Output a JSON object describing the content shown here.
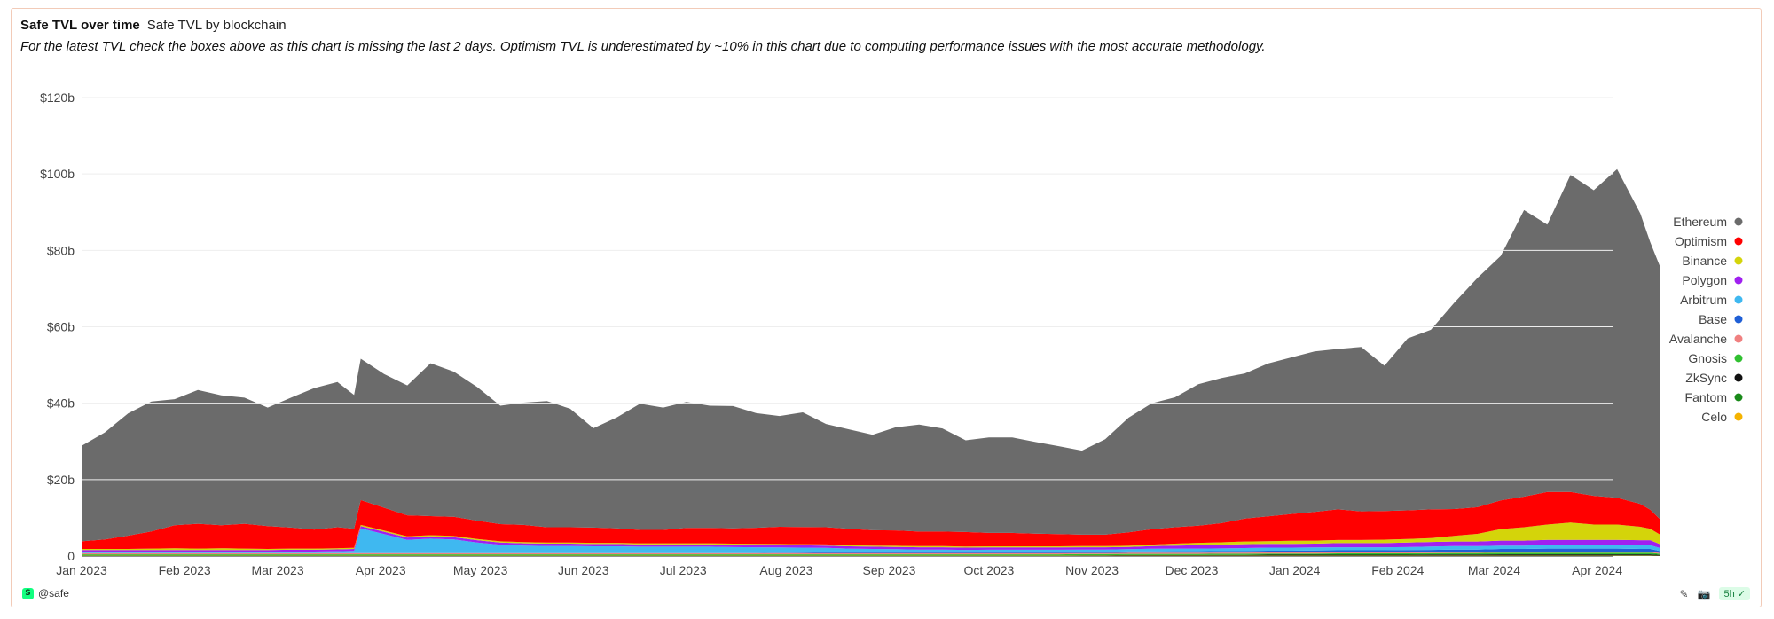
{
  "header": {
    "title": "Safe TVL over time",
    "subtitle": "Safe TVL by blockchain",
    "note": "For the latest TVL check the boxes above as this chart is missing the last 2 days. Optimism TVL is underestimated by ~10% in this chart due to computing performance issues with the most accurate methodology."
  },
  "footer": {
    "author": "@safe",
    "logo_glyph": "S",
    "age_badge": "5h",
    "badge_check": "✓",
    "icon_edit": "✎",
    "icon_camera": "📷"
  },
  "chart_data": {
    "type": "area",
    "stacked": true,
    "x_unit": "date",
    "x_tick_labels": [
      "Jan 2023",
      "Feb 2023",
      "Mar 2023",
      "Apr 2023",
      "May 2023",
      "Jun 2023",
      "Jul 2023",
      "Aug 2023",
      "Sep 2023",
      "Oct 2023",
      "Nov 2023",
      "Dec 2023",
      "Jan 2024",
      "Feb 2024",
      "Mar 2024",
      "Apr 2024"
    ],
    "y_tick_labels": [
      "0",
      "$20b",
      "$40b",
      "$60b",
      "$80b",
      "$100b",
      "$120b"
    ],
    "ylim": [
      0,
      120
    ],
    "y_unit": "billions USD",
    "grid": true,
    "legend_position": "right",
    "x": [
      "2023-01-01",
      "2023-01-08",
      "2023-01-15",
      "2023-01-22",
      "2023-01-29",
      "2023-02-05",
      "2023-02-12",
      "2023-02-19",
      "2023-02-26",
      "2023-03-05",
      "2023-03-12",
      "2023-03-19",
      "2023-03-24",
      "2023-03-26",
      "2023-04-02",
      "2023-04-09",
      "2023-04-16",
      "2023-04-23",
      "2023-04-30",
      "2023-05-07",
      "2023-05-14",
      "2023-05-21",
      "2023-05-28",
      "2023-06-04",
      "2023-06-11",
      "2023-06-18",
      "2023-06-25",
      "2023-07-02",
      "2023-07-09",
      "2023-07-16",
      "2023-07-23",
      "2023-07-30",
      "2023-08-06",
      "2023-08-13",
      "2023-08-20",
      "2023-08-27",
      "2023-09-03",
      "2023-09-10",
      "2023-09-17",
      "2023-09-24",
      "2023-10-01",
      "2023-10-08",
      "2023-10-15",
      "2023-10-22",
      "2023-10-29",
      "2023-11-05",
      "2023-11-12",
      "2023-11-19",
      "2023-11-26",
      "2023-12-03",
      "2023-12-10",
      "2023-12-17",
      "2023-12-24",
      "2023-12-31",
      "2024-01-07",
      "2024-01-14",
      "2024-01-21",
      "2024-01-28",
      "2024-02-04",
      "2024-02-11",
      "2024-02-18",
      "2024-02-25",
      "2024-03-03",
      "2024-03-10",
      "2024-03-17",
      "2024-03-24",
      "2024-03-31",
      "2024-04-07",
      "2024-04-14",
      "2024-04-17",
      "2024-04-20"
    ],
    "series": [
      {
        "name": "Celo",
        "color": "#f5b300",
        "values": [
          0.1,
          0.1,
          0.1,
          0.1,
          0.1,
          0.1,
          0.1,
          0.1,
          0.1,
          0.1,
          0.1,
          0.1,
          0.1,
          0.1,
          0.1,
          0.1,
          0.1,
          0.1,
          0.1,
          0.1,
          0.1,
          0.1,
          0.1,
          0.1,
          0.1,
          0.1,
          0.1,
          0.1,
          0.1,
          0.1,
          0.1,
          0.1,
          0.1,
          0.1,
          0.1,
          0.1,
          0.1,
          0.1,
          0.1,
          0.1,
          0.1,
          0.1,
          0.1,
          0.1,
          0.1,
          0.1,
          0.1,
          0.1,
          0.1,
          0.1,
          0.1,
          0.1,
          0.1,
          0.1,
          0.1,
          0.1,
          0.1,
          0.1,
          0.1,
          0.1,
          0.1,
          0.1,
          0.1,
          0.1,
          0.1,
          0.1,
          0.1,
          0.1,
          0.1,
          0.1,
          0.05
        ]
      },
      {
        "name": "Fantom",
        "color": "#1a8a1a",
        "values": [
          0.05,
          0.05,
          0.05,
          0.05,
          0.05,
          0.05,
          0.05,
          0.05,
          0.05,
          0.05,
          0.05,
          0.05,
          0.05,
          0.05,
          0.05,
          0.05,
          0.05,
          0.05,
          0.05,
          0.05,
          0.05,
          0.05,
          0.05,
          0.05,
          0.05,
          0.05,
          0.05,
          0.05,
          0.05,
          0.05,
          0.05,
          0.05,
          0.05,
          0.05,
          0.05,
          0.05,
          0.05,
          0.05,
          0.05,
          0.05,
          0.05,
          0.05,
          0.05,
          0.05,
          0.05,
          0.05,
          0.05,
          0.05,
          0.05,
          0.05,
          0.05,
          0.05,
          0.05,
          0.05,
          0.05,
          0.05,
          0.05,
          0.05,
          0.05,
          0.05,
          0.05,
          0.05,
          0.05,
          0.05,
          0.05,
          0.05,
          0.05,
          0.05,
          0.05,
          0.05,
          0.03
        ]
      },
      {
        "name": "ZkSync",
        "color": "#111111",
        "values": [
          0,
          0,
          0,
          0,
          0,
          0,
          0,
          0,
          0,
          0,
          0,
          0,
          0,
          0,
          0,
          0,
          0,
          0,
          0,
          0,
          0,
          0,
          0,
          0,
          0,
          0,
          0,
          0,
          0,
          0,
          0,
          0,
          0,
          0,
          0,
          0,
          0,
          0,
          0,
          0,
          0,
          0,
          0,
          0,
          0.05,
          0.05,
          0.1,
          0.1,
          0.1,
          0.1,
          0.15,
          0.15,
          0.2,
          0.2,
          0.2,
          0.2,
          0.2,
          0.2,
          0.2,
          0.25,
          0.25,
          0.25,
          0.3,
          0.3,
          0.3,
          0.3,
          0.3,
          0.3,
          0.3,
          0.3,
          0.2
        ]
      },
      {
        "name": "Gnosis",
        "color": "#30c030",
        "values": [
          0.3,
          0.3,
          0.3,
          0.3,
          0.3,
          0.3,
          0.3,
          0.3,
          0.3,
          0.3,
          0.3,
          0.3,
          0.3,
          0.3,
          0.3,
          0.3,
          0.3,
          0.3,
          0.3,
          0.3,
          0.3,
          0.3,
          0.3,
          0.3,
          0.3,
          0.3,
          0.3,
          0.3,
          0.3,
          0.3,
          0.3,
          0.3,
          0.3,
          0.3,
          0.3,
          0.3,
          0.3,
          0.3,
          0.3,
          0.3,
          0.3,
          0.3,
          0.3,
          0.3,
          0.3,
          0.3,
          0.3,
          0.3,
          0.3,
          0.3,
          0.3,
          0.3,
          0.3,
          0.3,
          0.3,
          0.35,
          0.35,
          0.35,
          0.35,
          0.35,
          0.4,
          0.4,
          0.4,
          0.4,
          0.4,
          0.4,
          0.4,
          0.4,
          0.4,
          0.4,
          0.3
        ]
      },
      {
        "name": "Avalanche",
        "color": "#f08080",
        "values": [
          0.3,
          0.3,
          0.3,
          0.3,
          0.3,
          0.3,
          0.3,
          0.3,
          0.3,
          0.3,
          0.3,
          0.3,
          0.3,
          0.3,
          0.3,
          0.3,
          0.3,
          0.3,
          0.3,
          0.3,
          0.3,
          0.3,
          0.3,
          0.3,
          0.3,
          0.3,
          0.3,
          0.3,
          0.3,
          0.3,
          0.3,
          0.3,
          0.3,
          0.3,
          0.3,
          0.3,
          0.3,
          0.3,
          0.3,
          0.3,
          0.3,
          0.3,
          0.3,
          0.3,
          0.3,
          0.3,
          0.3,
          0.3,
          0.3,
          0.3,
          0.3,
          0.3,
          0.3,
          0.3,
          0.3,
          0.3,
          0.3,
          0.3,
          0.3,
          0.3,
          0.3,
          0.3,
          0.3,
          0.3,
          0.3,
          0.3,
          0.3,
          0.3,
          0.3,
          0.3,
          0.2
        ]
      },
      {
        "name": "Base",
        "color": "#1f5fd6",
        "values": [
          0,
          0,
          0,
          0,
          0,
          0,
          0,
          0,
          0,
          0,
          0,
          0,
          0,
          0,
          0,
          0,
          0,
          0,
          0,
          0,
          0,
          0,
          0,
          0,
          0,
          0,
          0,
          0,
          0,
          0,
          0.05,
          0.1,
          0.15,
          0.2,
          0.2,
          0.2,
          0.25,
          0.25,
          0.25,
          0.25,
          0.3,
          0.3,
          0.3,
          0.3,
          0.3,
          0.3,
          0.35,
          0.35,
          0.4,
          0.4,
          0.4,
          0.4,
          0.45,
          0.45,
          0.5,
          0.5,
          0.5,
          0.5,
          0.55,
          0.55,
          0.6,
          0.6,
          0.7,
          0.7,
          0.8,
          0.8,
          0.8,
          0.8,
          0.7,
          0.7,
          0.5
        ]
      },
      {
        "name": "Arbitrum",
        "color": "#3fb8f0",
        "values": [
          0.3,
          0.3,
          0.3,
          0.3,
          0.3,
          0.3,
          0.3,
          0.3,
          0.3,
          0.4,
          0.4,
          0.5,
          0.6,
          6.5,
          5.0,
          3.5,
          3.8,
          3.6,
          2.8,
          2.2,
          2.0,
          1.9,
          1.9,
          1.8,
          1.8,
          1.7,
          1.7,
          1.7,
          1.7,
          1.6,
          1.5,
          1.4,
          1.3,
          1.2,
          1.0,
          0.9,
          0.8,
          0.7,
          0.7,
          0.6,
          0.6,
          0.6,
          0.6,
          0.6,
          0.6,
          0.6,
          0.6,
          0.7,
          0.7,
          0.7,
          0.7,
          0.8,
          0.8,
          0.8,
          0.8,
          0.8,
          0.8,
          0.8,
          0.8,
          0.9,
          0.9,
          0.9,
          0.9,
          0.9,
          1.0,
          1.0,
          1.0,
          1.0,
          1.0,
          1.0,
          0.8
        ]
      },
      {
        "name": "Polygon",
        "color": "#a020f0",
        "values": [
          0.5,
          0.5,
          0.5,
          0.5,
          0.5,
          0.5,
          0.5,
          0.5,
          0.5,
          0.5,
          0.5,
          0.5,
          0.5,
          0.6,
          0.6,
          0.6,
          0.6,
          0.6,
          0.6,
          0.6,
          0.6,
          0.6,
          0.6,
          0.6,
          0.6,
          0.6,
          0.6,
          0.6,
          0.6,
          0.6,
          0.6,
          0.6,
          0.6,
          0.6,
          0.6,
          0.6,
          0.6,
          0.6,
          0.6,
          0.6,
          0.6,
          0.6,
          0.6,
          0.6,
          0.6,
          0.6,
          0.6,
          0.7,
          0.8,
          0.9,
          1.0,
          1.0,
          1.0,
          1.0,
          1.0,
          1.1,
          1.1,
          1.1,
          1.2,
          1.2,
          1.2,
          1.2,
          1.3,
          1.3,
          1.3,
          1.3,
          1.3,
          1.3,
          1.3,
          1.3,
          1.0
        ]
      },
      {
        "name": "Binance",
        "color": "#d4d40a",
        "values": [
          0.3,
          0.3,
          0.3,
          0.4,
          0.5,
          0.4,
          0.5,
          0.4,
          0.3,
          0.3,
          0.3,
          0.3,
          0.3,
          0.3,
          0.3,
          0.3,
          0.3,
          0.3,
          0.3,
          0.3,
          0.3,
          0.3,
          0.3,
          0.3,
          0.3,
          0.3,
          0.3,
          0.3,
          0.3,
          0.3,
          0.3,
          0.3,
          0.3,
          0.3,
          0.3,
          0.3,
          0.3,
          0.3,
          0.3,
          0.3,
          0.3,
          0.3,
          0.3,
          0.3,
          0.3,
          0.3,
          0.3,
          0.4,
          0.5,
          0.6,
          0.6,
          0.7,
          0.7,
          0.8,
          0.8,
          0.8,
          0.8,
          0.9,
          0.9,
          1.0,
          1.5,
          2.0,
          3.0,
          3.5,
          4.0,
          4.5,
          4.0,
          4.0,
          3.5,
          3.0,
          2.5
        ]
      },
      {
        "name": "Optimism",
        "color": "#ff0000",
        "values": [
          2.0,
          2.5,
          3.5,
          4.5,
          6.0,
          6.5,
          6.0,
          6.5,
          6.0,
          5.5,
          5.0,
          5.5,
          5.0,
          6.5,
          6.0,
          5.5,
          5.0,
          5.0,
          4.8,
          4.5,
          4.5,
          4.0,
          4.0,
          4.0,
          3.8,
          3.5,
          3.5,
          4.0,
          4.0,
          4.0,
          4.2,
          4.5,
          4.5,
          4.5,
          4.3,
          4.0,
          4.0,
          3.8,
          3.8,
          3.8,
          3.5,
          3.5,
          3.3,
          3.2,
          3.0,
          3.0,
          3.5,
          4.0,
          4.3,
          4.5,
          5.0,
          6.0,
          6.5,
          7.0,
          7.5,
          8.0,
          7.5,
          7.5,
          7.5,
          7.5,
          7.0,
          7.0,
          7.5,
          8.0,
          8.5,
          8.0,
          7.5,
          7.0,
          6.0,
          5.0,
          4.0
        ]
      },
      {
        "name": "Ethereum",
        "color": "#6b6b6b",
        "values": [
          25,
          28,
          32,
          34,
          33,
          35,
          34,
          33,
          31,
          34,
          37,
          38,
          35,
          37,
          35,
          34,
          40,
          38,
          35,
          31,
          32,
          33,
          31,
          26,
          29,
          33,
          32,
          33,
          32,
          32,
          30,
          29,
          30,
          27,
          26,
          25,
          27,
          28,
          27,
          24,
          25,
          25,
          24,
          23,
          22,
          25,
          30,
          33,
          34,
          37,
          38,
          38,
          40,
          41,
          42,
          42,
          43,
          38,
          45,
          47,
          54,
          60,
          64,
          75,
          70,
          83,
          80,
          86,
          76,
          70,
          66
        ]
      }
    ]
  }
}
